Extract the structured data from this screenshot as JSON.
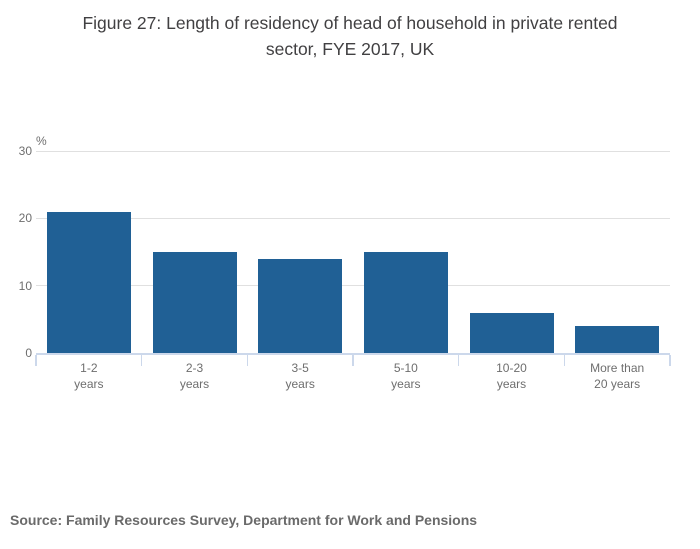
{
  "header": {
    "title_line1": "Figure 27: Length of residency of head of household in private rented",
    "title_line2": "sector, FYE 2017, UK"
  },
  "chart_data": {
    "type": "bar",
    "title": "Figure 27: Length of residency of head of household in private rented sector, FYE 2017, UK",
    "categories": [
      "1-2 years",
      "2-3 years",
      "3-5 years",
      "5-10 years",
      "10-20 years",
      "More than 20 years"
    ],
    "category_label_lines": [
      [
        "1-2",
        "years"
      ],
      [
        "2-3",
        "years"
      ],
      [
        "3-5",
        "years"
      ],
      [
        "5-10",
        "years"
      ],
      [
        "10-20",
        "years"
      ],
      [
        "More than",
        "20 years"
      ]
    ],
    "values": [
      21,
      15,
      14,
      15,
      6,
      4
    ],
    "xlabel": "",
    "ylabel": "%",
    "ylim": [
      0,
      30
    ],
    "yticks": [
      0,
      10,
      20,
      30
    ],
    "grid": true,
    "legend": "none",
    "source": "Source: Family Resources Survey, Department for Work and Pensions"
  },
  "colors": {
    "bar": "#206095",
    "gridline": "#e0e0e0",
    "axis_line": "#ccd8eb",
    "tick_label": "#6e6e6e",
    "title_text": "#414042",
    "source_text": "#6a6a6a",
    "background": "#ffffff"
  }
}
